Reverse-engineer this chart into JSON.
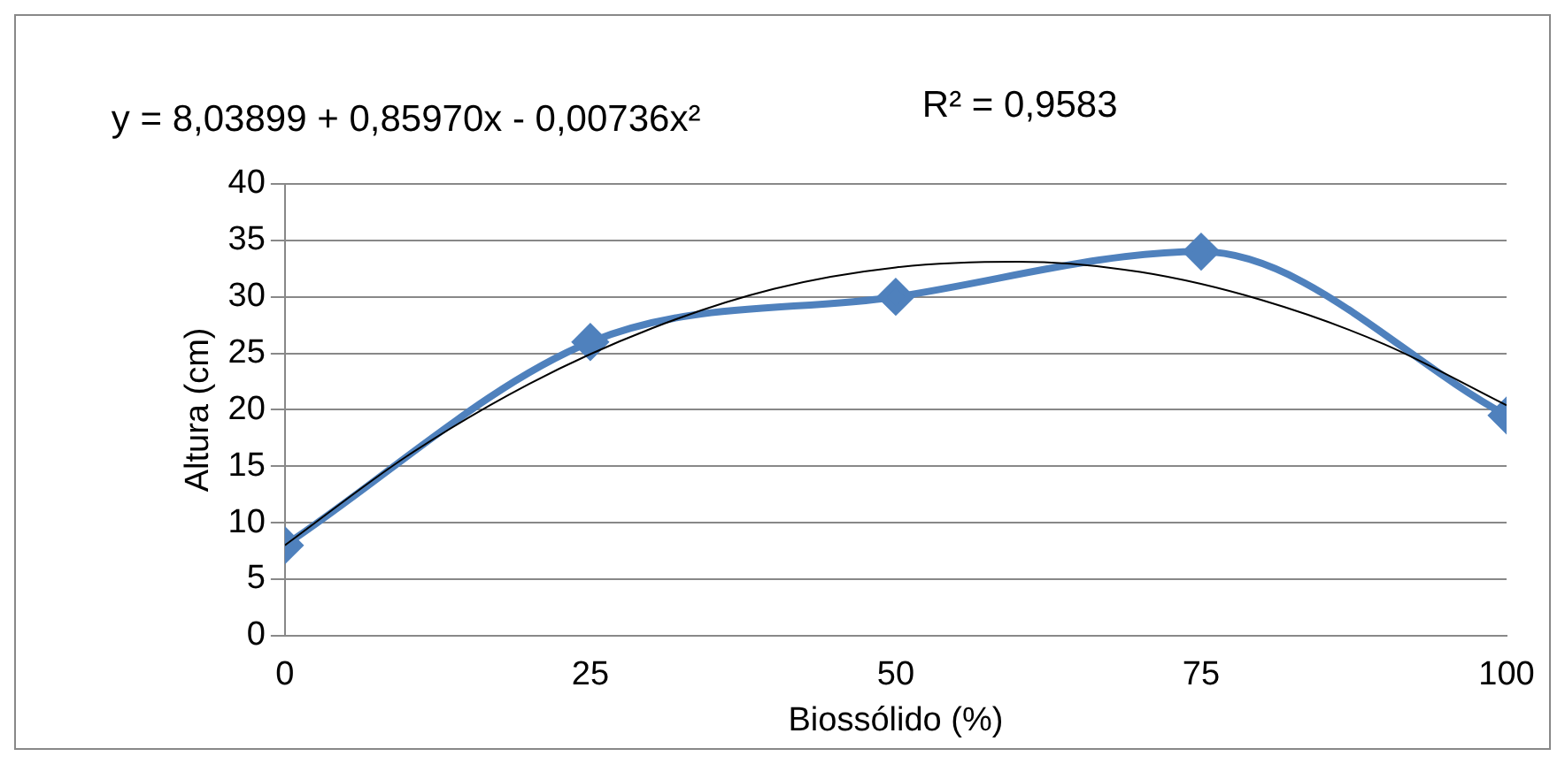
{
  "chart_data": {
    "type": "line",
    "xlabel": "Biossólido (%)",
    "ylabel": "Altura (cm)",
    "annotations": [
      "y = 8,03899 + 0,85970x - 0,00736x²",
      "R² = 0,9583"
    ],
    "x": [
      0,
      25,
      50,
      75,
      100
    ],
    "series": [
      {
        "type": "line",
        "color": "#4f81bd",
        "marker": "diamond",
        "values": [
          8,
          26,
          30,
          34,
          19.5
        ]
      },
      {
        "type": "line",
        "color": "#000000",
        "marker": "none",
        "x": [
          0,
          10,
          20,
          30,
          40,
          50,
          60,
          70,
          80,
          90,
          100
        ],
        "values": [
          8.0,
          15.9,
          22.3,
          27.2,
          30.7,
          32.6,
          33.1,
          32.2,
          29.7,
          25.8,
          20.4
        ]
      }
    ],
    "xlim": [
      0,
      100
    ],
    "xticks": [
      0,
      25,
      50,
      75,
      100
    ],
    "ylim": [
      0,
      40
    ],
    "yticks": [
      0,
      5,
      10,
      15,
      20,
      25,
      30,
      35,
      40
    ],
    "grid": "y",
    "legend": false
  }
}
